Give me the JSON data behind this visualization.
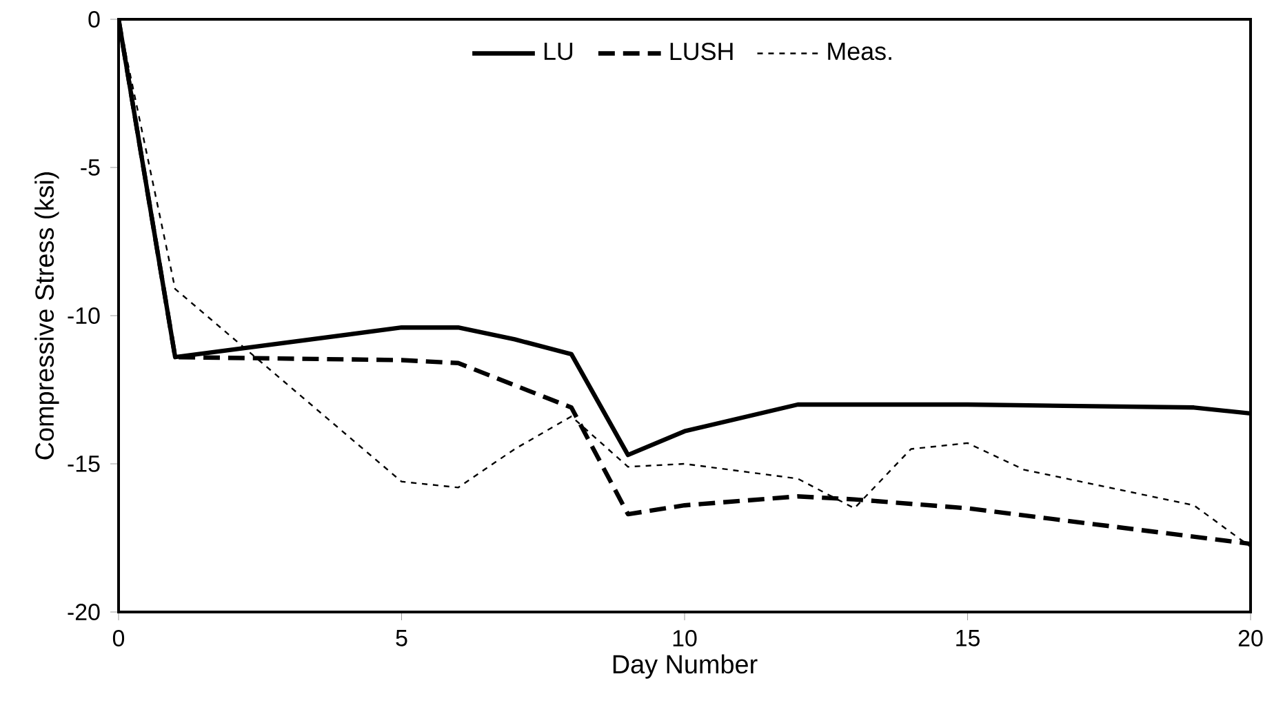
{
  "chart_data": {
    "type": "line",
    "xlabel": "Day Number",
    "ylabel": "Compressive Stress (ksi)",
    "xlim": [
      0,
      20
    ],
    "ylim": [
      -20,
      0
    ],
    "xticks": [
      0,
      5,
      10,
      15,
      20
    ],
    "yticks": [
      -20,
      -15,
      -10,
      -5,
      0
    ],
    "legend": "top",
    "grid": false,
    "marker": "none",
    "series": [
      {
        "name": "LU",
        "color": "#000000",
        "line_style": "solid",
        "x": [
          0,
          1,
          5,
          6,
          7,
          8,
          9,
          10,
          12,
          15,
          19,
          20
        ],
        "values": [
          0,
          -11.4,
          -10.4,
          -10.4,
          -10.8,
          -11.3,
          -14.7,
          -13.9,
          -13.0,
          -13.0,
          -13.1,
          -13.3
        ]
      },
      {
        "name": "LUSH",
        "color": "#000000",
        "line_style": "dashed",
        "x": [
          0,
          1,
          5,
          6,
          8,
          9,
          10,
          12,
          13,
          15,
          20
        ],
        "values": [
          0,
          -11.4,
          -11.5,
          -11.6,
          -13.1,
          -16.7,
          -16.4,
          -16.1,
          -16.2,
          -16.5,
          -17.7
        ]
      },
      {
        "name": "Meas.",
        "color": "#000000",
        "line_style": "dotted",
        "x": [
          0,
          1,
          5,
          6,
          7,
          8,
          9,
          10,
          12,
          13,
          14,
          15,
          16,
          19,
          20
        ],
        "values": [
          0,
          -9.1,
          -15.6,
          -15.8,
          -14.5,
          -13.4,
          -15.1,
          -15.0,
          -15.5,
          -16.5,
          -14.5,
          -14.3,
          -15.2,
          -16.4,
          -17.8
        ]
      }
    ]
  }
}
